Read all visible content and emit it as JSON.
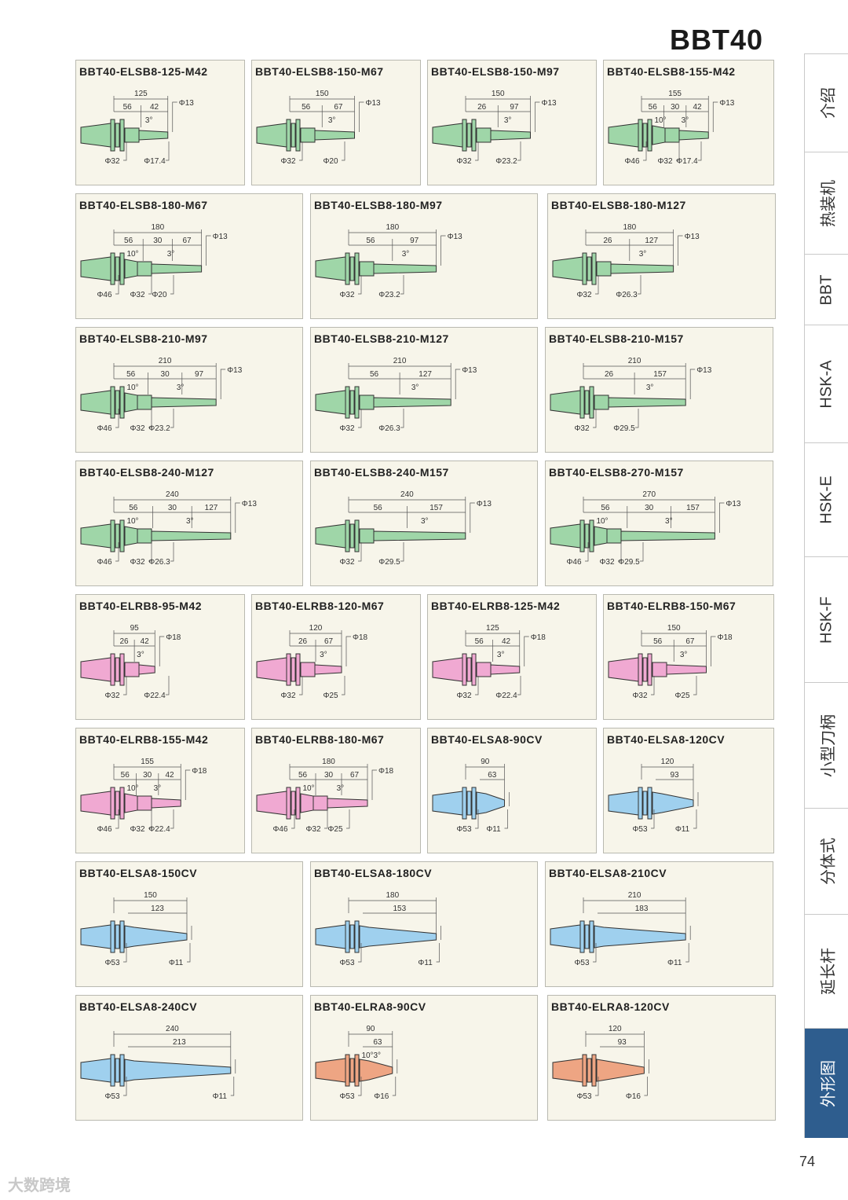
{
  "page": {
    "title": "BBT40",
    "page_number": "74",
    "watermark": "大数跨境"
  },
  "colors": {
    "ELSB": "#9fd6a8",
    "ELRB": "#f0a9d2",
    "ELSA": "#9fd0ee",
    "ELRA": "#eea583",
    "tab_active": "#2e5d8e"
  },
  "sidebar": {
    "tabs": [
      {
        "label": "介绍"
      },
      {
        "label": "热装机"
      },
      {
        "label": "BBT"
      },
      {
        "label": "HSK-A"
      },
      {
        "label": "HSK-E"
      },
      {
        "label": "HSK-F"
      },
      {
        "label": "小型刀柄"
      },
      {
        "label": "分体式"
      },
      {
        "label": "延长杆"
      },
      {
        "label": "外形图"
      }
    ]
  },
  "cards": [
    {
      "title": "BBT40-ELSB8-125-M42",
      "kind": "ELSB",
      "total": "125",
      "segs": [
        "56",
        "42"
      ],
      "angles": [
        "3°"
      ],
      "tip": "Φ13",
      "diams": [
        "Φ32",
        "Φ17.4"
      ]
    },
    {
      "title": "BBT40-ELSB8-150-M67",
      "kind": "ELSB",
      "total": "150",
      "segs": [
        "56",
        "67"
      ],
      "angles": [
        "3°"
      ],
      "tip": "Φ13",
      "diams": [
        "Φ32",
        "Φ20"
      ]
    },
    {
      "title": "BBT40-ELSB8-150-M97",
      "kind": "ELSB",
      "total": "150",
      "segs": [
        "26",
        "97"
      ],
      "angles": [
        "3°"
      ],
      "tip": "Φ13",
      "diams": [
        "Φ32",
        "Φ23.2"
      ]
    },
    {
      "title": "BBT40-ELSB8-155-M42",
      "kind": "ELSB",
      "total": "155",
      "segs": [
        "56",
        "30",
        "42"
      ],
      "angles": [
        "10°",
        "3°"
      ],
      "tip": "Φ13",
      "diams": [
        "Φ46",
        "Φ32",
        "Φ17.4"
      ]
    },
    {
      "title": "BBT40-ELSB8-180-M67",
      "kind": "ELSB",
      "total": "180",
      "segs": [
        "56",
        "30",
        "67"
      ],
      "angles": [
        "10°",
        "3°"
      ],
      "tip": "Φ13",
      "diams": [
        "Φ46",
        "Φ32",
        "Φ20"
      ]
    },
    {
      "title": "BBT40-ELSB8-180-M97",
      "kind": "ELSB",
      "total": "180",
      "segs": [
        "56",
        "97"
      ],
      "angles": [
        "3°"
      ],
      "tip": "Φ13",
      "diams": [
        "Φ32",
        "Φ23.2"
      ]
    },
    {
      "title": "BBT40-ELSB8-180-M127",
      "kind": "ELSB",
      "total": "180",
      "segs": [
        "26",
        "127"
      ],
      "angles": [
        "3°"
      ],
      "tip": "Φ13",
      "diams": [
        "Φ32",
        "Φ26.3"
      ]
    },
    {
      "title": "BBT40-ELSB8-210-M97",
      "kind": "ELSB",
      "total": "210",
      "segs": [
        "56",
        "30",
        "97"
      ],
      "angles": [
        "10°",
        "3°"
      ],
      "tip": "Φ13",
      "diams": [
        "Φ46",
        "Φ32",
        "Φ23.2"
      ]
    },
    {
      "title": "BBT40-ELSB8-210-M127",
      "kind": "ELSB",
      "total": "210",
      "segs": [
        "56",
        "127"
      ],
      "angles": [
        "3°"
      ],
      "tip": "Φ13",
      "diams": [
        "Φ32",
        "Φ26.3"
      ]
    },
    {
      "title": "BBT40-ELSB8-210-M157",
      "kind": "ELSB",
      "total": "210",
      "segs": [
        "26",
        "157"
      ],
      "angles": [
        "3°"
      ],
      "tip": "Φ13",
      "diams": [
        "Φ32",
        "Φ29.5"
      ]
    },
    {
      "title": "BBT40-ELSB8-240-M127",
      "kind": "ELSB",
      "total": "240",
      "segs": [
        "56",
        "30",
        "127"
      ],
      "angles": [
        "10°",
        "3°"
      ],
      "tip": "Φ13",
      "diams": [
        "Φ46",
        "Φ32",
        "Φ26.3"
      ]
    },
    {
      "title": "BBT40-ELSB8-240-M157",
      "kind": "ELSB",
      "total": "240",
      "segs": [
        "56",
        "157"
      ],
      "angles": [
        "3°"
      ],
      "tip": "Φ13",
      "diams": [
        "Φ32",
        "Φ29.5"
      ]
    },
    {
      "title": "BBT40-ELSB8-270-M157",
      "kind": "ELSB",
      "total": "270",
      "segs": [
        "56",
        "30",
        "157"
      ],
      "angles": [
        "10°",
        "3°"
      ],
      "tip": "Φ13",
      "diams": [
        "Φ46",
        "Φ32",
        "Φ29.5"
      ]
    },
    {
      "title": "BBT40-ELRB8-95-M42",
      "kind": "ELRB",
      "total": "95",
      "segs": [
        "26",
        "42"
      ],
      "angles": [
        "3°"
      ],
      "tip": "Φ18",
      "diams": [
        "Φ32",
        "Φ22.4"
      ]
    },
    {
      "title": "BBT40-ELRB8-120-M67",
      "kind": "ELRB",
      "total": "120",
      "segs": [
        "26",
        "67"
      ],
      "angles": [
        "3°"
      ],
      "tip": "Φ18",
      "diams": [
        "Φ32",
        "Φ25"
      ]
    },
    {
      "title": "BBT40-ELRB8-125-M42",
      "kind": "ELRB",
      "total": "125",
      "segs": [
        "56",
        "42"
      ],
      "angles": [
        "3°"
      ],
      "tip": "Φ18",
      "diams": [
        "Φ32",
        "Φ22.4"
      ]
    },
    {
      "title": "BBT40-ELRB8-150-M67",
      "kind": "ELRB",
      "total": "150",
      "segs": [
        "56",
        "67"
      ],
      "angles": [
        "3°"
      ],
      "tip": "Φ18",
      "diams": [
        "Φ32",
        "Φ25"
      ]
    },
    {
      "title": "BBT40-ELRB8-155-M42",
      "kind": "ELRB",
      "total": "155",
      "segs": [
        "56",
        "30",
        "42"
      ],
      "angles": [
        "10°",
        "3°"
      ],
      "tip": "Φ18",
      "diams": [
        "Φ46",
        "Φ32",
        "Φ22.4"
      ]
    },
    {
      "title": "BBT40-ELRB8-180-M67",
      "kind": "ELRB",
      "total": "180",
      "segs": [
        "56",
        "30",
        "67"
      ],
      "angles": [
        "10°",
        "3°"
      ],
      "tip": "Φ18",
      "diams": [
        "Φ46",
        "Φ32",
        "Φ25"
      ]
    },
    {
      "title": "BBT40-ELSA8-90CV",
      "kind": "ELSA",
      "total": "90",
      "segs": [
        "63"
      ],
      "angles": [],
      "tip": "",
      "diams": [
        "Φ53",
        "Φ11"
      ]
    },
    {
      "title": "BBT40-ELSA8-120CV",
      "kind": "ELSA",
      "total": "120",
      "segs": [
        "93"
      ],
      "angles": [],
      "tip": "",
      "diams": [
        "Φ53",
        "Φ11"
      ]
    },
    {
      "title": "BBT40-ELSA8-150CV",
      "kind": "ELSA",
      "total": "150",
      "segs": [
        "123"
      ],
      "angles": [],
      "tip": "",
      "diams": [
        "Φ53",
        "Φ11"
      ]
    },
    {
      "title": "BBT40-ELSA8-180CV",
      "kind": "ELSA",
      "total": "180",
      "segs": [
        "153"
      ],
      "angles": [],
      "tip": "",
      "diams": [
        "Φ53",
        "Φ11"
      ]
    },
    {
      "title": "BBT40-ELSA8-210CV",
      "kind": "ELSA",
      "total": "210",
      "segs": [
        "183"
      ],
      "angles": [],
      "tip": "",
      "diams": [
        "Φ53",
        "Φ11"
      ]
    },
    {
      "title": "BBT40-ELSA8-240CV",
      "kind": "ELSA",
      "total": "240",
      "segs": [
        "213"
      ],
      "angles": [],
      "tip": "",
      "diams": [
        "Φ53",
        "Φ11"
      ]
    },
    {
      "title": "BBT40-ELRA8-90CV",
      "kind": "ELRA",
      "total": "90",
      "segs": [
        "63"
      ],
      "angles": [
        "10°",
        "3°"
      ],
      "tip": "",
      "diams": [
        "Φ53",
        "Φ16"
      ]
    },
    {
      "title": "BBT40-ELRA8-120CV",
      "kind": "ELRA",
      "total": "120",
      "segs": [
        "93"
      ],
      "angles": [],
      "tip": "",
      "diams": [
        "Φ53",
        "Φ16"
      ]
    }
  ]
}
